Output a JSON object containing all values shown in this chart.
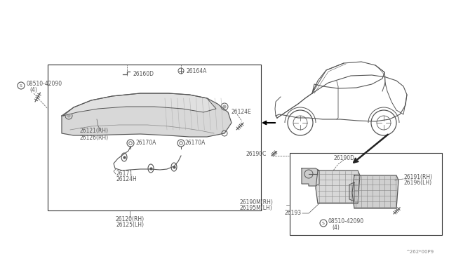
{
  "bg_color": "#ffffff",
  "line_color": "#555555",
  "text_color": "#555555",
  "fig_width": 6.4,
  "fig_height": 3.72,
  "dpi": 100,
  "labels": {
    "screw_left": "08510-42090",
    "screw_left2": "(4)",
    "screw_right": "08510-42090",
    "screw_right2": "(4)",
    "l26160D": "26160D",
    "l26164A": "26164A",
    "l26124E": "26124E",
    "l26121RH": "26121(RH)",
    "l26126RH": "26126(RH)",
    "l26170A_L": "26170A",
    "l26170A_R": "26170A",
    "l26171": "26171",
    "l26124H": "26124H",
    "l26120RH": "26120(RH)",
    "l26125LH": "26125(LH)",
    "l26190C": "26190C",
    "l26190D": "26190D",
    "l26191RH": "26191(RH)",
    "l26196LH": "26196(LH)",
    "l26193": "26193",
    "l26190M": "26190M(RH)",
    "l26195M": "26195M(LH)",
    "watermark": "^262*00P9"
  }
}
